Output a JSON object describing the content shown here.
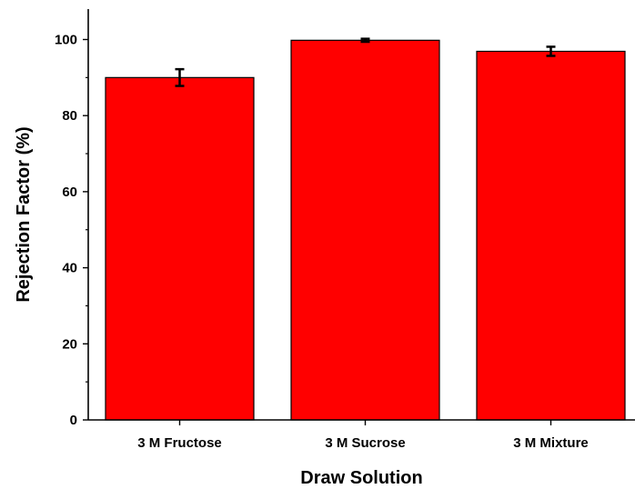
{
  "chart_data": {
    "type": "bar",
    "xlabel": "Draw Solution",
    "ylabel": "Rejection Factor (%)",
    "categories": [
      "3 M Fructose",
      "3 M Sucrose",
      "3 M Mixture"
    ],
    "values": [
      90.0,
      99.8,
      96.9
    ],
    "errors": [
      2.2,
      0.4,
      1.2
    ],
    "ylim": [
      0,
      108
    ],
    "yticks": [
      0,
      20,
      40,
      60,
      80,
      100
    ],
    "ytick_labels": [
      "0",
      "20",
      "40",
      "60",
      "80",
      "100"
    ],
    "grid": false,
    "legend": "none",
    "bar_color": "#ff0000",
    "edge_color": "#000000"
  }
}
